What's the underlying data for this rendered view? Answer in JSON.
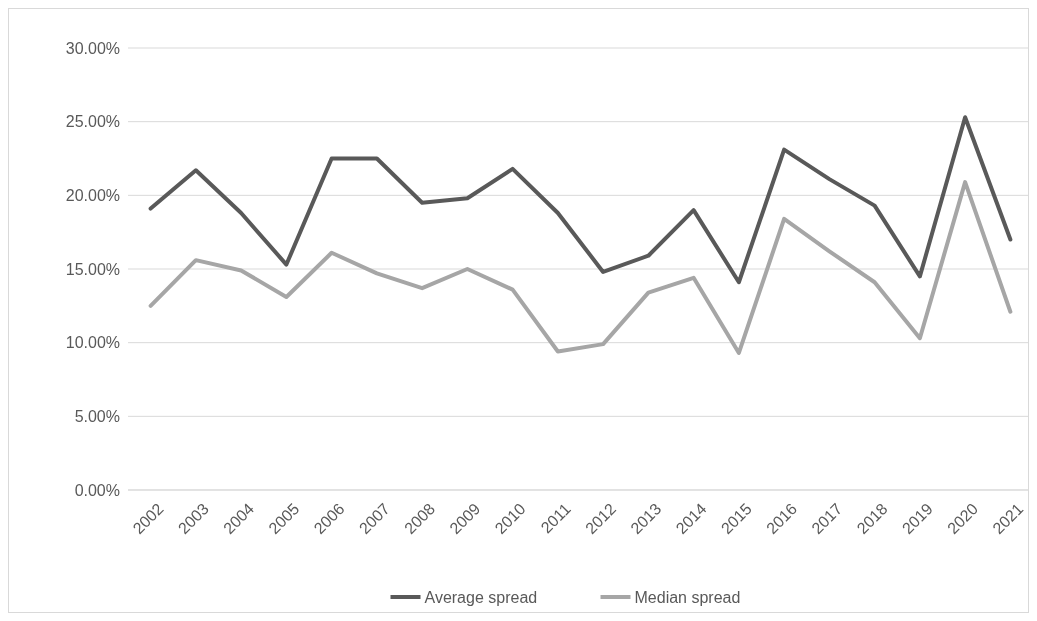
{
  "chart_data": {
    "type": "line",
    "categories": [
      "2002",
      "2003",
      "2004",
      "2005",
      "2006",
      "2007",
      "2008",
      "2009",
      "2010",
      "2011",
      "2012",
      "2013",
      "2014",
      "2015",
      "2016",
      "2017",
      "2018",
      "2019",
      "2020",
      "2021"
    ],
    "series": [
      {
        "name": "Average spread",
        "color": "#595959",
        "values": [
          19.1,
          21.7,
          18.8,
          15.3,
          22.5,
          22.5,
          19.5,
          19.8,
          21.8,
          18.8,
          14.8,
          15.9,
          19.0,
          14.1,
          23.1,
          21.1,
          19.3,
          14.5,
          25.3,
          17.0
        ]
      },
      {
        "name": "Median spread",
        "color": "#a6a6a6",
        "values": [
          12.5,
          15.6,
          14.9,
          13.1,
          16.1,
          14.7,
          13.7,
          15.0,
          13.6,
          9.4,
          9.9,
          13.4,
          14.4,
          9.3,
          18.4,
          16.2,
          14.1,
          10.3,
          20.9,
          12.1
        ]
      }
    ],
    "ylim": [
      0,
      30
    ],
    "yticks": [
      {
        "value": 0,
        "label": "0.00%"
      },
      {
        "value": 5,
        "label": "5.00%"
      },
      {
        "value": 10,
        "label": "10.00%"
      },
      {
        "value": 15,
        "label": "15.00%"
      },
      {
        "value": 20,
        "label": "20.00%"
      },
      {
        "value": 25,
        "label": "25.00%"
      },
      {
        "value": 30,
        "label": "30.00%"
      }
    ],
    "grid": "y",
    "legend": "bottom",
    "marker": "none",
    "line_style": "solid"
  }
}
